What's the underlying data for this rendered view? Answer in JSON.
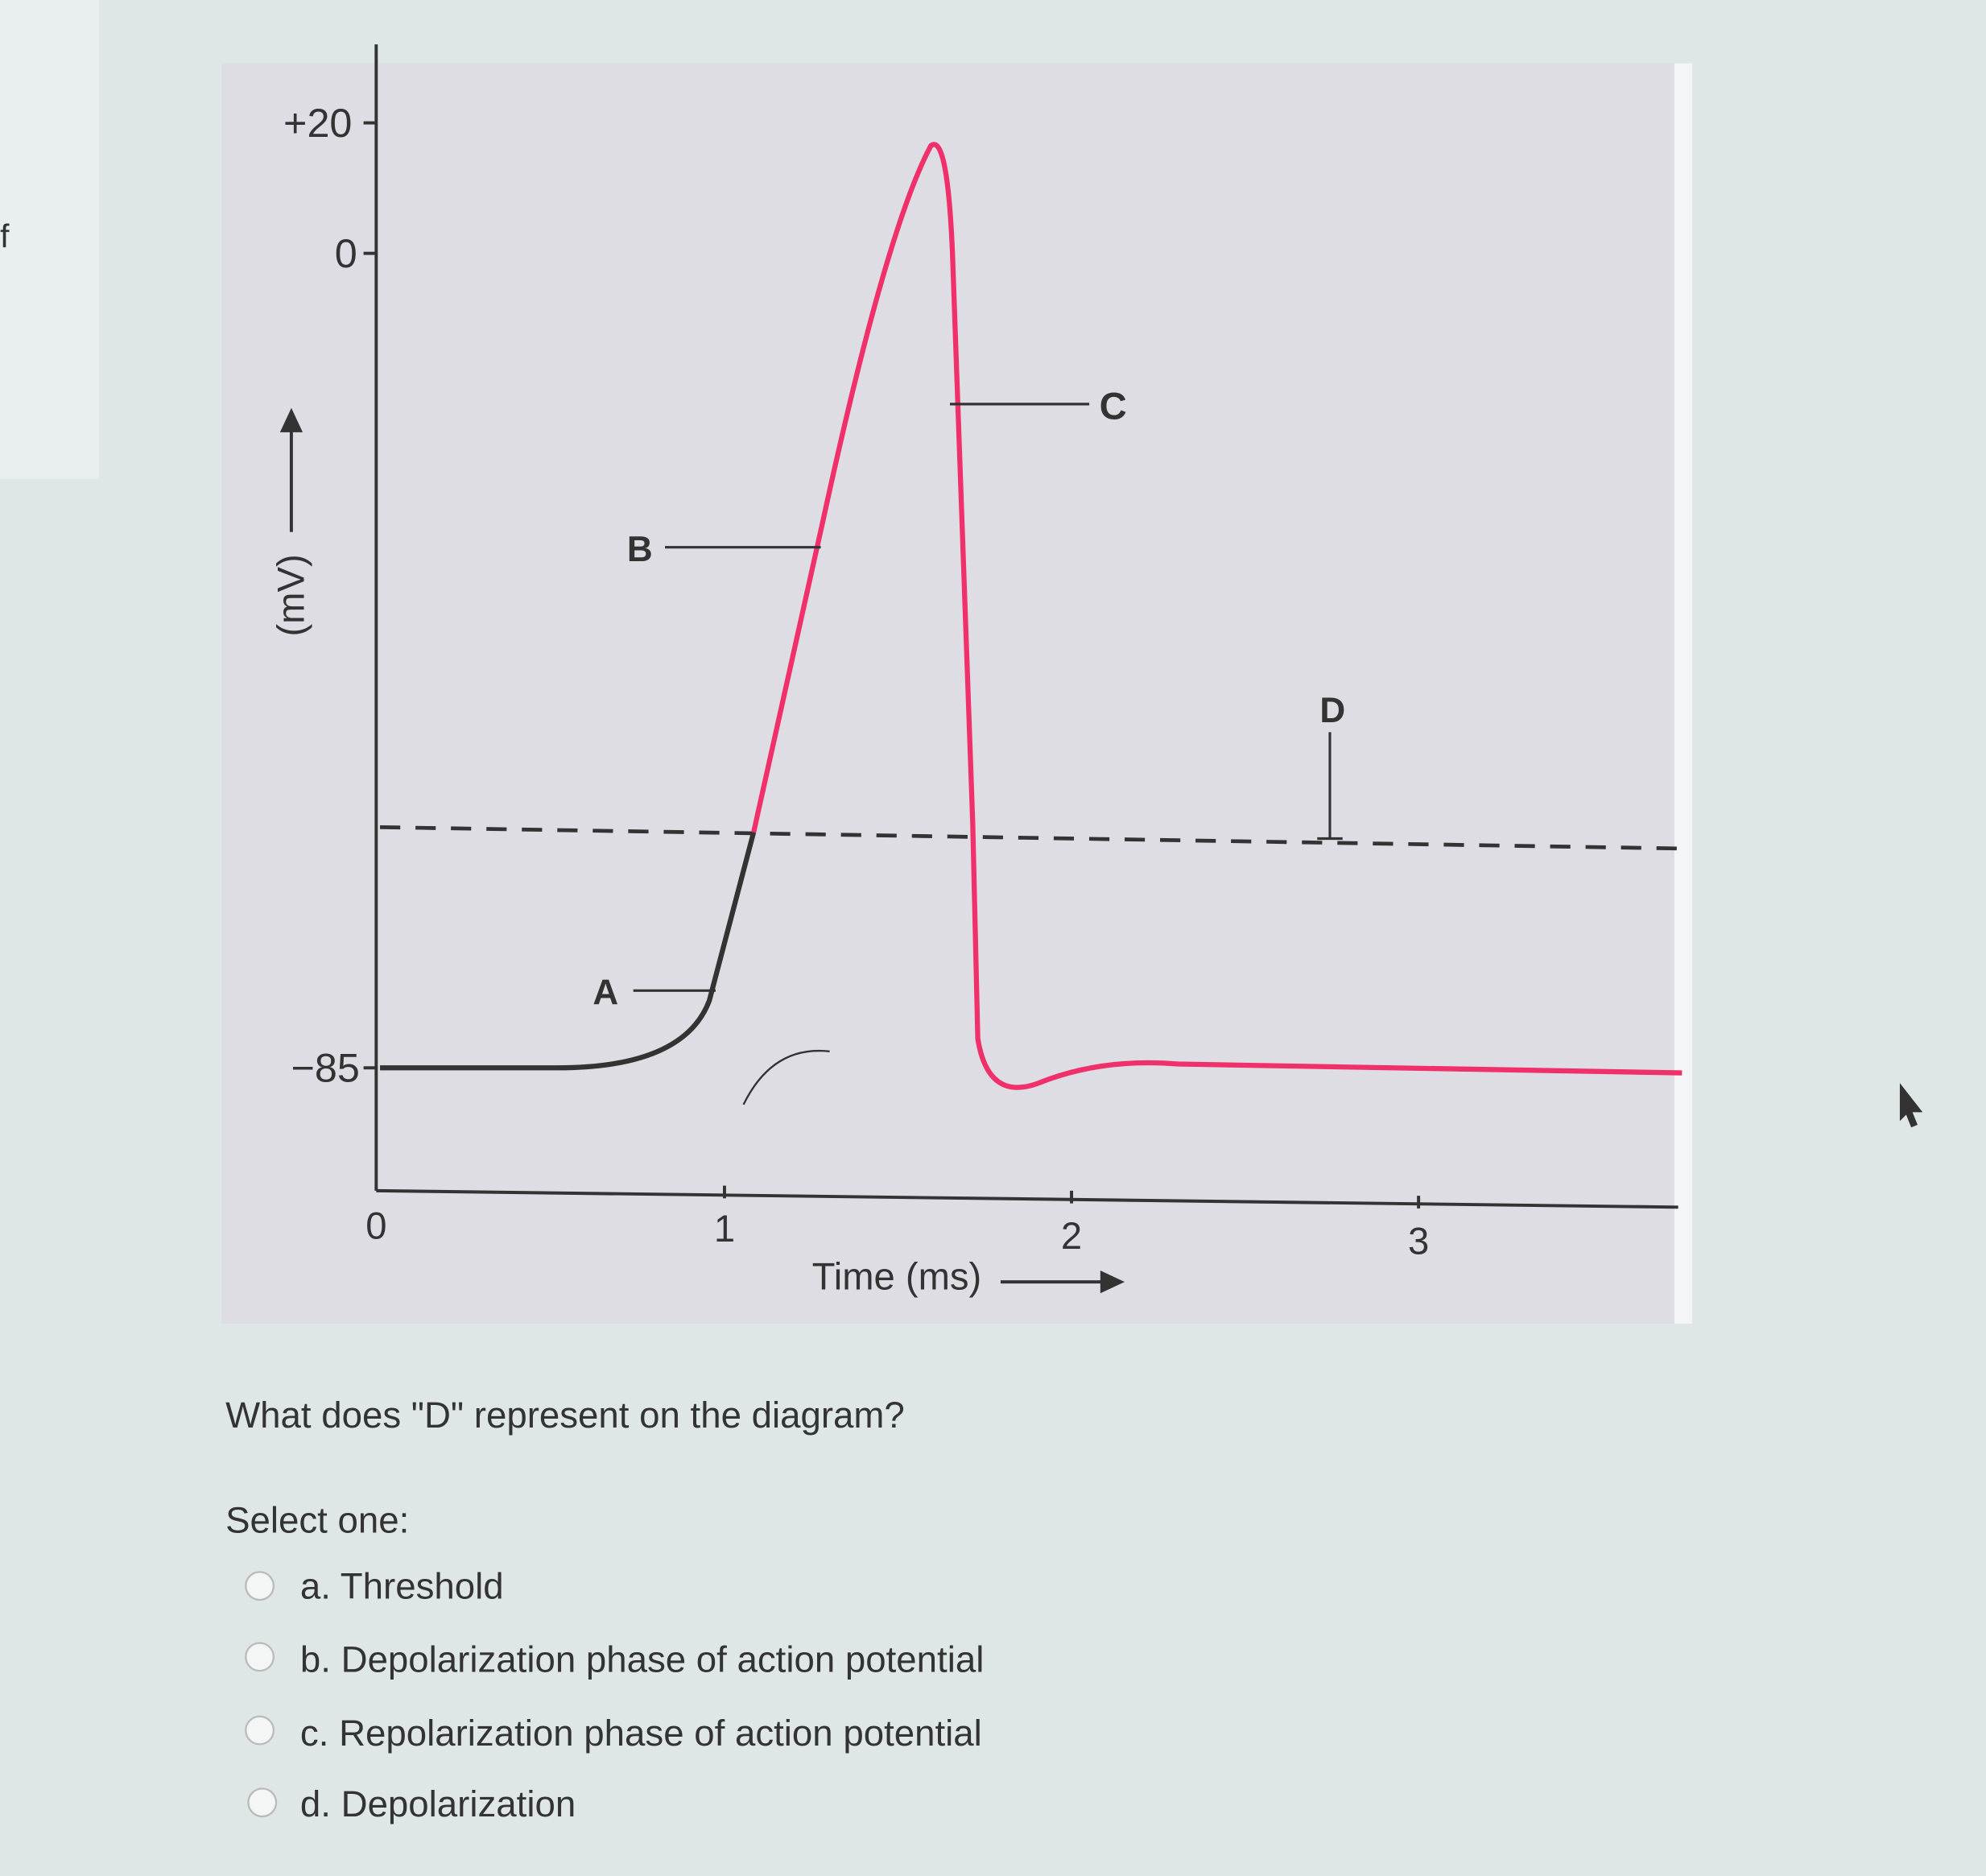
{
  "fragment": "f",
  "diagram": {
    "y_axis": {
      "label": "(mV)",
      "ticks": [
        "+20",
        "0",
        "−85"
      ]
    },
    "x_axis": {
      "label": "Time (ms)",
      "ticks": [
        "0",
        "1",
        "2",
        "3"
      ]
    },
    "annotations": [
      "A",
      "B",
      "C",
      "D"
    ]
  },
  "question": {
    "prompt": "What does \"D\" represent on the diagram?",
    "instruction": "Select one:",
    "options": [
      "a. Threshold",
      "b. Depolarization phase of action potential",
      "c. Repolarization phase of action potential",
      "d. Depolarization"
    ]
  }
}
